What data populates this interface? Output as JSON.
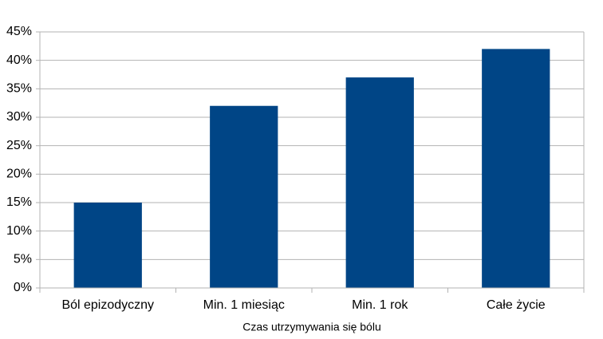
{
  "chart_data": {
    "type": "bar",
    "x_label": "Czas utrzymywania się bólu",
    "categories": [
      "Ból epizodyczny",
      "Min. 1 miesiąc",
      "Min. 1 rok",
      "Całe życie"
    ],
    "values": [
      15,
      32,
      37,
      42
    ],
    "color": "#004586",
    "ylim": [
      0,
      45
    ],
    "yticks": [
      {
        "value": 0,
        "label": "0%"
      },
      {
        "value": 5,
        "label": "5%"
      },
      {
        "value": 10,
        "label": "10%"
      },
      {
        "value": 15,
        "label": "15%"
      },
      {
        "value": 20,
        "label": "20%"
      },
      {
        "value": 25,
        "label": "25%"
      },
      {
        "value": 30,
        "label": "30%"
      },
      {
        "value": 35,
        "label": "35%"
      },
      {
        "value": 40,
        "label": "40%"
      },
      {
        "value": 45,
        "label": "45%"
      }
    ],
    "grid": true
  }
}
